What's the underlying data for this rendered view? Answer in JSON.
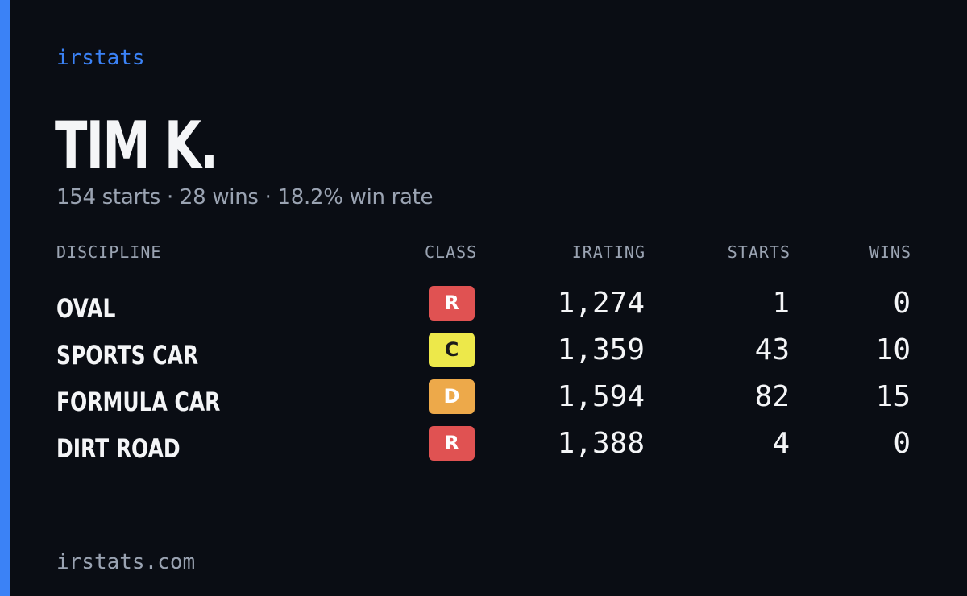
{
  "brand": "irstats",
  "driver": {
    "name": "TIM K.",
    "summary": "154 starts · 28 wins · 18.2% win rate"
  },
  "table": {
    "headers": {
      "discipline": "DISCIPLINE",
      "class": "CLASS",
      "irating": "IRATING",
      "starts": "STARTS",
      "wins": "WINS"
    },
    "rows": [
      {
        "discipline": "OVAL",
        "class": "R",
        "class_color": "#e05252",
        "class_text_color": "#ffffff",
        "irating": "1,274",
        "starts": "1",
        "wins": "0"
      },
      {
        "discipline": "SPORTS CAR",
        "class": "C",
        "class_color": "#ede84a",
        "class_text_color": "#1a1a1a",
        "irating": "1,359",
        "starts": "43",
        "wins": "10"
      },
      {
        "discipline": "FORMULA CAR",
        "class": "D",
        "class_color": "#eda94a",
        "class_text_color": "#ffffff",
        "irating": "1,594",
        "starts": "82",
        "wins": "15"
      },
      {
        "discipline": "DIRT ROAD",
        "class": "R",
        "class_color": "#e05252",
        "class_text_color": "#ffffff",
        "irating": "1,388",
        "starts": "4",
        "wins": "0"
      }
    ]
  },
  "footer": "irstats.com",
  "colors": {
    "background": "#0a0d14",
    "accent": "#3b82f6",
    "text_primary": "#f4f5f7",
    "text_muted": "#9aa3b2"
  }
}
